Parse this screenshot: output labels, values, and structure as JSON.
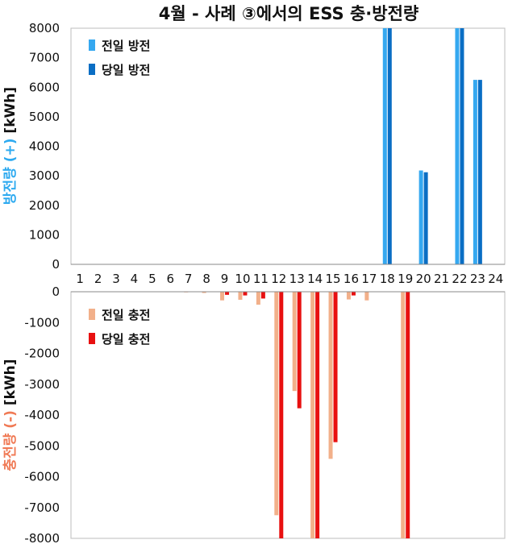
{
  "chart_data": {
    "title": "4월 - 사례 ③에서의 ESS 충·방전량",
    "type": "bar",
    "x_categories": [
      "1",
      "2",
      "3",
      "4",
      "5",
      "6",
      "7",
      "8",
      "9",
      "10",
      "11",
      "12",
      "13",
      "14",
      "15",
      "16",
      "17",
      "18",
      "19",
      "20",
      "21",
      "22",
      "23",
      "24"
    ],
    "panels": [
      {
        "id": "discharge",
        "ylabel_colored": "방전량 (+)",
        "ylabel_unit": "[kWh]",
        "ylabel_color": "#2eaaf0",
        "ylim": [
          0,
          8000
        ],
        "yticks": [
          "0",
          "1000",
          "2000",
          "3000",
          "4000",
          "5000",
          "6000",
          "7000",
          "8000"
        ],
        "series": [
          {
            "name": "전일 방전",
            "color": "#35a8f0",
            "values": [
              0,
              0,
              0,
              0,
              0,
              0,
              0,
              0,
              0,
              0,
              0,
              0,
              0,
              0,
              0,
              0,
              0,
              8000,
              0,
              3180,
              0,
              8000,
              6250,
              0
            ]
          },
          {
            "name": "당일 방전",
            "color": "#0a6ec4",
            "values": [
              0,
              0,
              0,
              0,
              0,
              0,
              0,
              0,
              0,
              0,
              0,
              0,
              0,
              0,
              0,
              0,
              0,
              8000,
              0,
              3120,
              0,
              8000,
              6250,
              0
            ]
          }
        ]
      },
      {
        "id": "charge",
        "ylabel_colored": "충전량 (-)",
        "ylabel_unit": "[kWh]",
        "ylabel_color": "#f07a55",
        "ylim": [
          -8000,
          0
        ],
        "yticks": [
          "0",
          "-1000",
          "-2000",
          "-3000",
          "-4000",
          "-5000",
          "-6000",
          "-7000",
          "-8000"
        ],
        "series": [
          {
            "name": "전일 충전",
            "color": "#f2b08a",
            "values": [
              0,
              0,
              0,
              0,
              0,
              0,
              -20,
              -40,
              -280,
              -260,
              -420,
              -7250,
              -3220,
              -8000,
              -5420,
              -250,
              -280,
              0,
              -8000,
              0,
              0,
              0,
              0,
              0
            ]
          },
          {
            "name": "당일 충전",
            "color": "#e81010",
            "values": [
              0,
              0,
              0,
              0,
              0,
              0,
              0,
              0,
              -100,
              -120,
              -220,
              -8000,
              -3780,
              -8000,
              -4880,
              -120,
              0,
              0,
              -8000,
              0,
              0,
              0,
              0,
              0
            ]
          }
        ]
      }
    ]
  }
}
